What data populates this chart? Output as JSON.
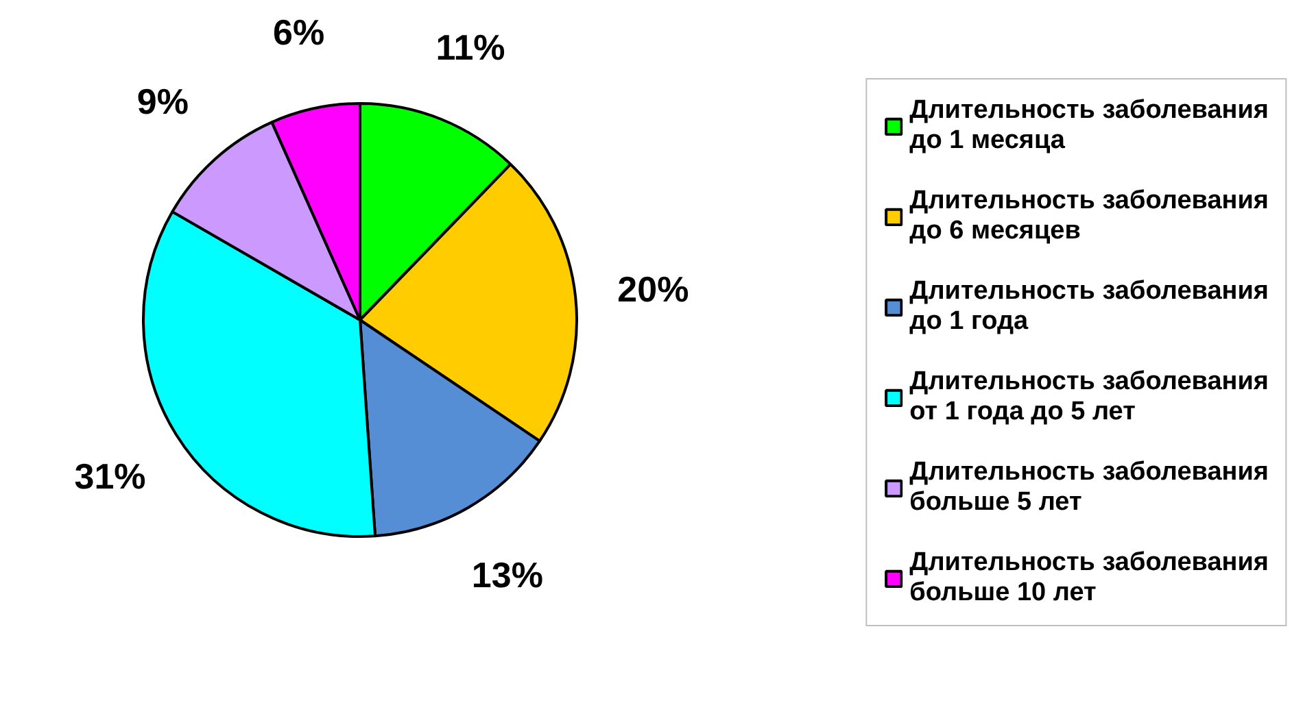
{
  "chart_data": {
    "type": "pie",
    "categories": [
      "Длительность заболевания до 1 месяца",
      "Длительность заболевания до 6 месяцев",
      "Длительность заболевания до 1 года",
      "Длительность заболевания от 1 года до 5 лет",
      "Длительность заболевания больше 5 лет",
      "Длительность заболевания больше 10 лет"
    ],
    "values": [
      11,
      20,
      13,
      31,
      9,
      6
    ],
    "colors": [
      "#00ff00",
      "#ffcc00",
      "#558ed5",
      "#00ffff",
      "#cc99ff",
      "#ff00ff"
    ],
    "value_labels": [
      "11%",
      "20%",
      "13%",
      "31%",
      "9%",
      "6%"
    ],
    "legend": "right"
  }
}
